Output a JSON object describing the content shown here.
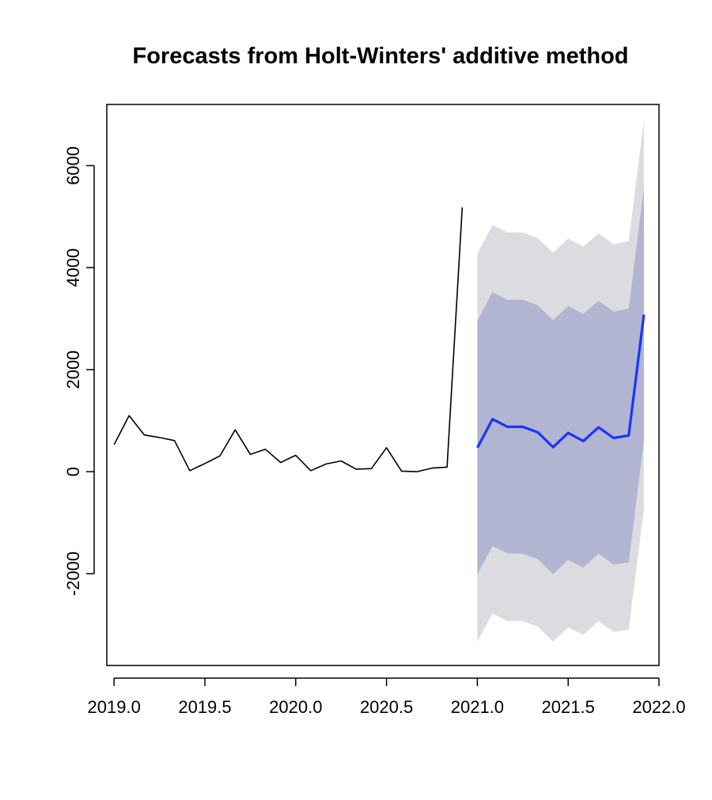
{
  "chart_data": {
    "type": "line",
    "title": "Forecasts from Holt-Winters' additive method",
    "xlabel": "",
    "ylabel": "",
    "xlim": [
      2018.96,
      2022.0
    ],
    "ylim": [
      -3800,
      7200
    ],
    "x_ticks": [
      2019.0,
      2019.5,
      2020.0,
      2020.5,
      2021.0,
      2021.5,
      2022.0
    ],
    "x_tick_labels": [
      "2019.0",
      "2019.5",
      "2020.0",
      "2020.5",
      "2021.0",
      "2021.5",
      "2022.0"
    ],
    "y_ticks": [
      -2000,
      0,
      2000,
      4000,
      6000
    ],
    "y_tick_labels": [
      "-2000",
      "0",
      "2000",
      "4000",
      "6000"
    ],
    "grid": false,
    "legend": "none",
    "series": [
      {
        "role": "observed",
        "color": "#000000",
        "x": [
          2019.0,
          2019.083,
          2019.167,
          2019.25,
          2019.333,
          2019.417,
          2019.5,
          2019.583,
          2019.667,
          2019.75,
          2019.833,
          2019.917,
          2020.0,
          2020.083,
          2020.167,
          2020.25,
          2020.333,
          2020.417,
          2020.5,
          2020.583,
          2020.667,
          2020.75,
          2020.833,
          2020.917
        ],
        "values": [
          530,
          1100,
          720,
          670,
          610,
          20,
          160,
          310,
          820,
          340,
          440,
          180,
          320,
          20,
          150,
          210,
          50,
          60,
          470,
          10,
          0,
          70,
          90,
          5180
        ]
      },
      {
        "role": "forecast",
        "color": "#1a33ff",
        "x": [
          2021.0,
          2021.083,
          2021.167,
          2021.25,
          2021.333,
          2021.417,
          2021.5,
          2021.583,
          2021.667,
          2021.75,
          2021.833,
          2021.917
        ],
        "values": [
          470,
          1030,
          880,
          880,
          770,
          480,
          760,
          600,
          870,
          660,
          710,
          3080
        ],
        "lo80": [
          -2010,
          -1460,
          -1600,
          -1610,
          -1720,
          -2010,
          -1730,
          -1880,
          -1610,
          -1820,
          -1780,
          600
        ],
        "hi80": [
          2950,
          3520,
          3370,
          3370,
          3260,
          2970,
          3250,
          3090,
          3350,
          3140,
          3200,
          5560
        ],
        "lo95": [
          -3330,
          -2780,
          -2930,
          -2930,
          -3040,
          -3330,
          -3050,
          -3200,
          -2930,
          -3140,
          -3100,
          -720
        ],
        "hi95": [
          4270,
          4840,
          4690,
          4690,
          4580,
          4290,
          4570,
          4410,
          4670,
          4460,
          4520,
          6880
        ]
      }
    ],
    "band_colors": {
      "pi95": "#dbdbe0",
      "pi80": "#b1b5d2"
    }
  }
}
